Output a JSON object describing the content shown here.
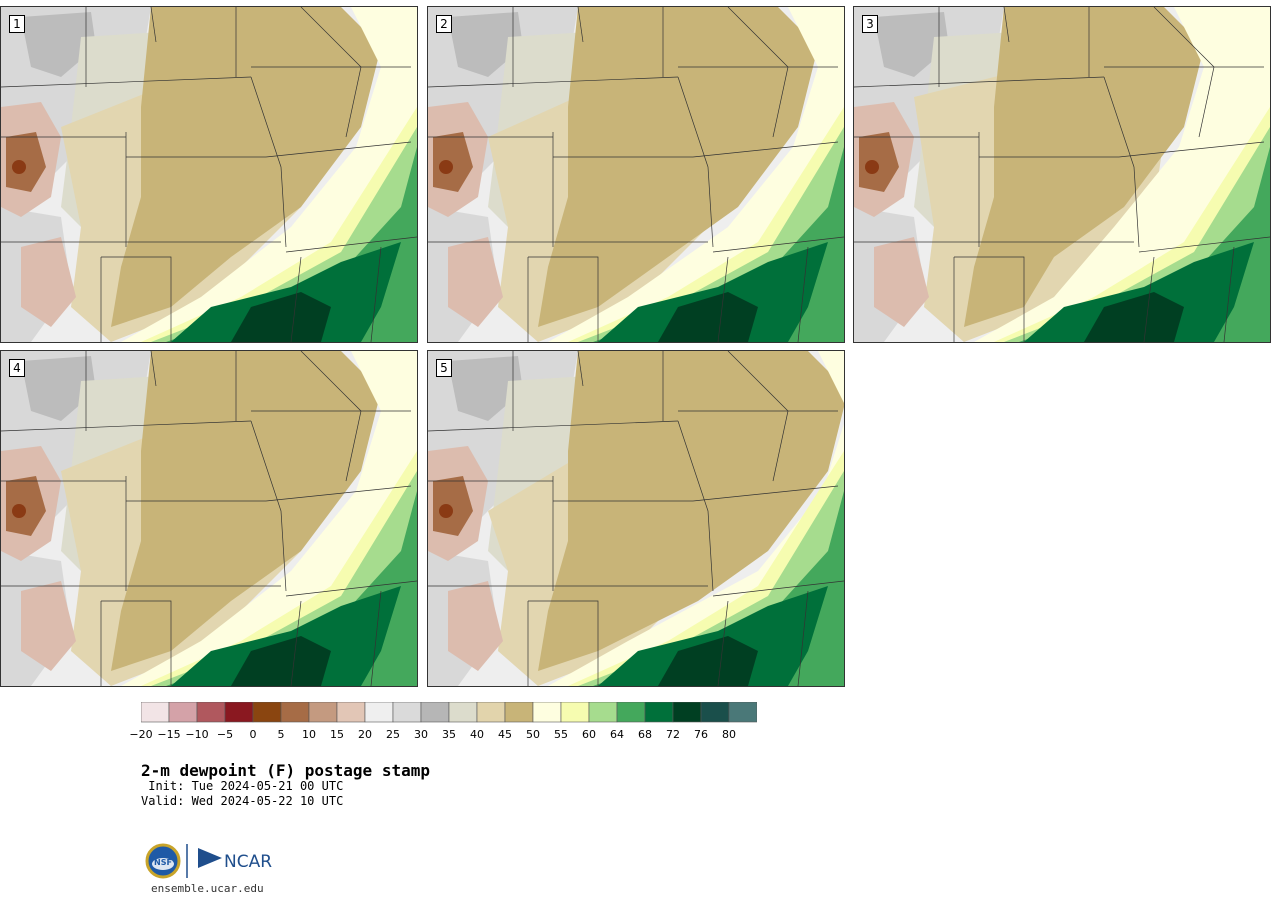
{
  "panels": [
    {
      "label": "1"
    },
    {
      "label": "2"
    },
    {
      "label": "3"
    },
    {
      "label": "4"
    },
    {
      "label": "5"
    }
  ],
  "colorbar": {
    "colors": [
      "#f2e4e6",
      "#d4a2a8",
      "#b0585e",
      "#8a1820",
      "#8a4510",
      "#a66c46",
      "#c49a80",
      "#e2c6b6",
      "#efefef",
      "#dadada",
      "#b6b6b6",
      "#dcdccc",
      "#e2d4ac",
      "#c8b478",
      "#fefee0",
      "#f6fcb0",
      "#a6dc8e",
      "#44a85c",
      "#00703a",
      "#003f22",
      "#1a4f4b",
      "#4a7878"
    ],
    "tick_labels": [
      "−20",
      "−15",
      "−10",
      "−5",
      "0",
      "5",
      "10",
      "15",
      "20",
      "25",
      "30",
      "35",
      "40",
      "45",
      "50",
      "55",
      "60",
      "64",
      "68",
      "72",
      "76",
      "80"
    ]
  },
  "text": {
    "title": "2-m dewpoint (F) postage stamp",
    "init": " Init: Tue 2024-05-21 00 UTC",
    "valid": "Valid: Wed 2024-05-22 10 UTC",
    "site": "ensemble.ucar.edu",
    "logo_nsf": "NSF",
    "logo_ncar": "NCAR"
  }
}
